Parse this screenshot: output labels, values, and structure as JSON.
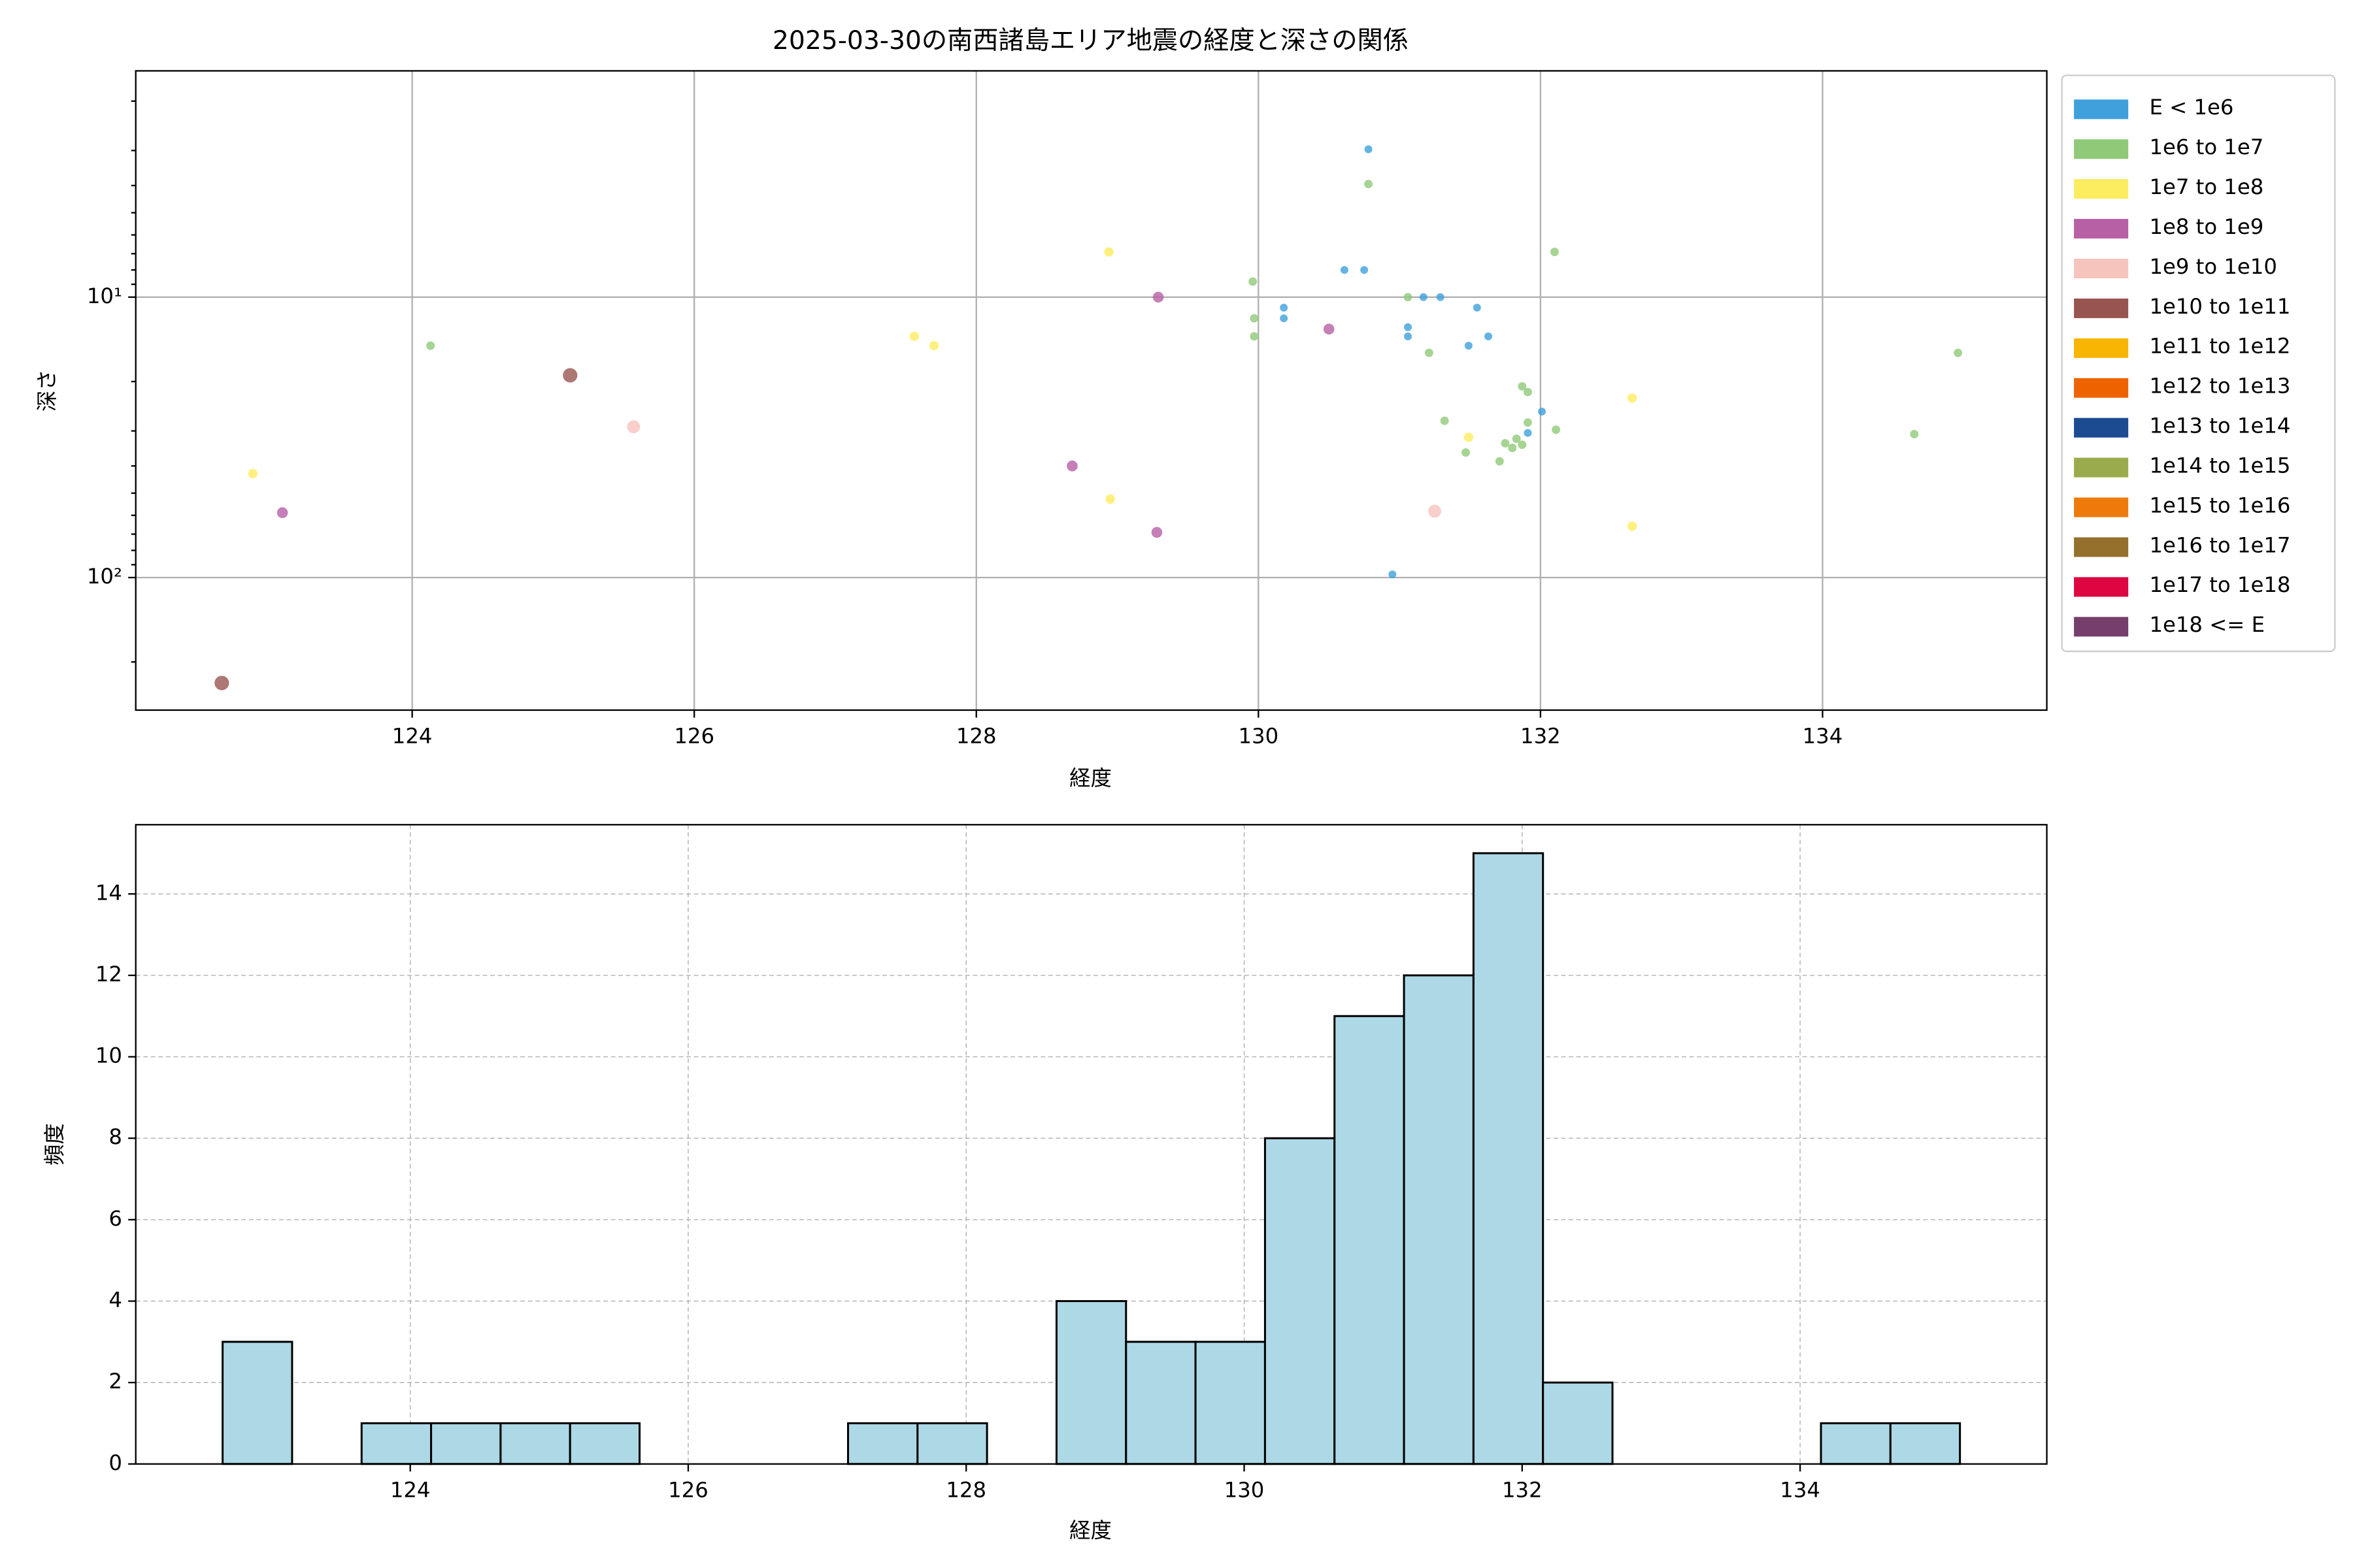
{
  "chart_data": [
    {
      "type": "scatter",
      "title": "2025-03-30の南西諸島エリア地震の経度と深さの関係",
      "xlabel": "経度",
      "ylabel": "深さ",
      "xlim": [
        122.04,
        135.59
      ],
      "xticks": [
        124,
        126,
        128,
        130,
        132,
        134
      ],
      "ylim": [
        297,
        1.56
      ],
      "yscale": "log",
      "yticks": [
        {
          "value": 10,
          "label": "10¹"
        },
        {
          "value": 100,
          "label": "10²"
        }
      ],
      "yminorticks": [
        2,
        3,
        4,
        5,
        6,
        7,
        8,
        9,
        20,
        30,
        40,
        50,
        60,
        70,
        80,
        90,
        200
      ],
      "grid": true,
      "legend": "outside right",
      "series": [
        {
          "name": "E < 1e6",
          "color": "#3fa0dc",
          "marker_size": 2.6,
          "x": [
            130.78,
            130.61,
            130.75,
            130.18,
            130.18,
            131.06,
            131.06,
            131.17,
            131.29,
            131.55,
            131.49,
            131.63,
            132.01,
            131.91,
            130.95
          ],
          "y": [
            2.97,
            8.0,
            8.0,
            10.9,
            11.9,
            12.8,
            13.8,
            10,
            10,
            10.9,
            14.9,
            13.8,
            25.6,
            30.5,
            97.5
          ]
        },
        {
          "name": "1e6 to 1e7",
          "color": "#90c978",
          "marker_size": 2.8,
          "x": [
            124.13,
            129.96,
            129.97,
            129.97,
            130.78,
            131.06,
            131.21,
            132.1,
            131.32,
            131.47,
            131.71,
            131.75,
            131.8,
            131.83,
            131.87,
            131.91,
            131.87,
            131.91,
            132.11,
            134.65,
            134.96
          ],
          "y": [
            14.9,
            8.8,
            11.9,
            13.8,
            3.95,
            10,
            15.8,
            6.9,
            27.6,
            35.8,
            38.5,
            33.2,
            34.5,
            32.0,
            33.6,
            28.0,
            20.8,
            21.8,
            29.7,
            30.8,
            15.8
          ]
        },
        {
          "name": "1e7 to 1e8",
          "color": "#fcec5f",
          "marker_size": 3.1,
          "x": [
            122.87,
            127.56,
            127.7,
            128.94,
            128.95,
            131.49,
            132.65,
            132.65
          ],
          "y": [
            42.6,
            13.8,
            14.9,
            6.9,
            52.5,
            31.6,
            22.9,
            65.6
          ]
        },
        {
          "name": "1e8 to 1e9",
          "color": "#b760a6",
          "marker_size": 3.6,
          "x": [
            123.08,
            129.29,
            130.5,
            128.68,
            129.28
          ],
          "y": [
            58.7,
            10,
            13.0,
            40.0,
            69.0
          ]
        },
        {
          "name": "1e9 to 1e10",
          "color": "#f6c3bd",
          "marker_size": 4.3,
          "x": [
            125.57,
            131.25
          ],
          "y": [
            29.0,
            58.0
          ]
        },
        {
          "name": "1e10 to 1e11",
          "color": "#985550",
          "marker_size": 4.8,
          "x": [
            125.12,
            122.65
          ],
          "y": [
            19.0,
            237.7
          ]
        },
        {
          "name": "1e11 to 1e12",
          "color": "#f8b502",
          "x": [],
          "y": []
        },
        {
          "name": "1e12 to 1e13",
          "color": "#ee6300",
          "x": [],
          "y": []
        },
        {
          "name": "1e13 to 1e14",
          "color": "#1c4b91",
          "x": [],
          "y": []
        },
        {
          "name": "1e14 to 1e15",
          "color": "#9aab4e",
          "x": [],
          "y": []
        },
        {
          "name": "1e15 to 1e16",
          "color": "#ee7a0c",
          "x": [],
          "y": []
        },
        {
          "name": "1e16 to 1e17",
          "color": "#95702c",
          "x": [],
          "y": []
        },
        {
          "name": "1e17 to 1e18",
          "color": "#dd0641",
          "x": [],
          "y": []
        },
        {
          "name": "1e18 <= E",
          "color": "#763e6b",
          "x": [],
          "y": []
        }
      ]
    },
    {
      "type": "histogram",
      "xlabel": "経度",
      "ylabel": "頻度",
      "color": "#add8e6",
      "edgecolor": "#000000",
      "bins": [
        122.65,
        123.15,
        123.65,
        124.15,
        124.65,
        125.15,
        125.65,
        126.15,
        126.65,
        127.15,
        127.65,
        128.15,
        128.65,
        129.15,
        129.65,
        130.15,
        130.65,
        131.15,
        131.65,
        132.15,
        132.65,
        133.15,
        133.65,
        134.15,
        134.65,
        135.15
      ],
      "values": [
        3,
        0,
        1,
        1,
        1,
        1,
        0,
        0,
        0,
        1,
        1,
        0,
        4,
        3,
        3,
        8,
        11,
        12,
        15,
        2,
        0,
        0,
        0,
        1,
        1
      ],
      "xlim": [
        122.025,
        135.775
      ],
      "xticks": [
        124,
        126,
        128,
        130,
        132,
        134
      ],
      "ylim": [
        0,
        15.7
      ],
      "yticks": [
        0,
        2,
        4,
        6,
        8,
        10,
        12,
        14
      ],
      "grid": "dashed"
    }
  ]
}
